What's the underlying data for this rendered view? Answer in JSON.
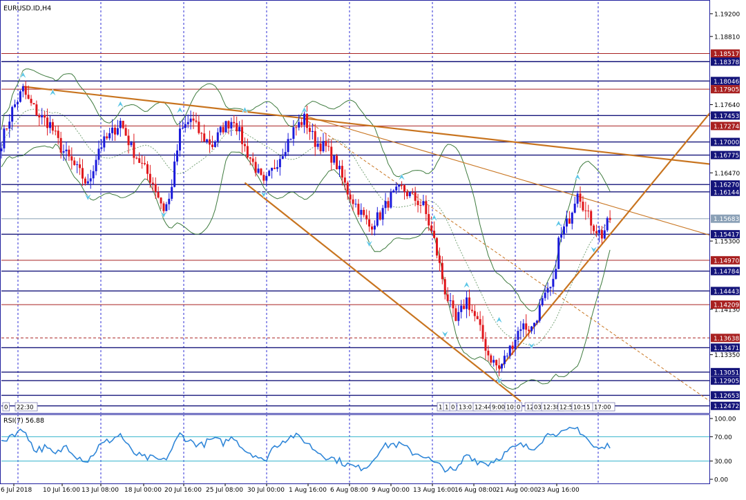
{
  "symbol_label": "EURUSD.ID,H4",
  "rsi_label": "RSI(7) 56.88",
  "colors": {
    "border": "#1e1e9e",
    "grid": "#2b2bd6",
    "bull": "#1a1adb",
    "bear": "#e0161b",
    "bollinger": "#3d7a3d",
    "trend": "#c8741f",
    "fractal": "#5bc6e6",
    "level_blue": "#14147a",
    "level_red": "#a82020",
    "rsi_line": "#2f86d8",
    "rsi_level": "#33b3cc",
    "current_price": "#8aa0b6"
  },
  "icons": [
    "fractal-up-arrow-icon",
    "fractal-down-arrow-icon"
  ],
  "chart_data": [
    {
      "type": "candlestick",
      "title": "EURUSD.ID,H4",
      "x_ticks": [
        "6 Jul 2018",
        "10 Jul 16:00",
        "13 Jul 08:00",
        "18 Jul 00:00",
        "20 Jul 16:00",
        "25 Jul 08:00",
        "30 Jul 00:00",
        "1 Aug 16:00",
        "6 Aug 08:00",
        "9 Aug 00:00",
        "13 Aug 16:00",
        "16 Aug 08:00",
        "21 Aug 00:00",
        "23 Aug 16:00"
      ],
      "y_ticks": [
        "1.19200",
        "1.18810",
        "1.17640",
        "1.16470",
        "1.15300",
        "1.14130",
        "1.13350"
      ],
      "ylim": [
        1.1235,
        1.194
      ],
      "current_price": "1.15683",
      "price_levels": [
        {
          "label": "1.18517",
          "color": "red"
        },
        {
          "label": "1.18378",
          "color": "blue"
        },
        {
          "label": "1.18046",
          "color": "blue"
        },
        {
          "label": "1.17905",
          "color": "red"
        },
        {
          "label": "1.17453",
          "color": "blue"
        },
        {
          "label": "1.17274",
          "color": "red"
        },
        {
          "label": "1.17000",
          "color": "blue"
        },
        {
          "label": "1.16775",
          "color": "blue"
        },
        {
          "label": "1.16270",
          "color": "blue"
        },
        {
          "label": "1.16144",
          "color": "blue"
        },
        {
          "label": "1.15417",
          "color": "blue"
        },
        {
          "label": "1.14970",
          "color": "red"
        },
        {
          "label": "1.14784",
          "color": "blue"
        },
        {
          "label": "1.14443",
          "color": "blue"
        },
        {
          "label": "1.14209",
          "color": "red"
        },
        {
          "label": "1.13638",
          "color": "red",
          "dashed": true
        },
        {
          "label": "1.13471",
          "color": "blue"
        },
        {
          "label": "1.13051",
          "color": "blue"
        },
        {
          "label": "1.12905",
          "color": "blue"
        },
        {
          "label": "1.12653",
          "color": "blue"
        },
        {
          "label": "1.12472",
          "color": "blue"
        }
      ],
      "close_path": [
        [
          0,
          1.17
        ],
        [
          4,
          1.1755
        ],
        [
          8,
          1.179
        ],
        [
          10,
          1.177
        ],
        [
          14,
          1.1745
        ],
        [
          18,
          1.173
        ],
        [
          22,
          1.169
        ],
        [
          26,
          1.1665
        ],
        [
          30,
          1.164
        ],
        [
          32,
          1.1625
        ],
        [
          36,
          1.169
        ],
        [
          40,
          1.171
        ],
        [
          44,
          1.1735
        ],
        [
          48,
          1.169
        ],
        [
          52,
          1.166
        ],
        [
          56,
          1.163
        ],
        [
          60,
          1.1585
        ],
        [
          62,
          1.16
        ],
        [
          66,
          1.1715
        ],
        [
          70,
          1.174
        ],
        [
          74,
          1.171
        ],
        [
          78,
          1.1695
        ],
        [
          82,
          1.1725
        ],
        [
          86,
          1.174
        ],
        [
          90,
          1.169
        ],
        [
          94,
          1.1655
        ],
        [
          97,
          1.1625
        ],
        [
          100,
          1.165
        ],
        [
          104,
          1.1685
        ],
        [
          108,
          1.172
        ],
        [
          112,
          1.174
        ],
        [
          116,
          1.17
        ],
        [
          120,
          1.169
        ],
        [
          124,
          1.166
        ],
        [
          128,
          1.1615
        ],
        [
          132,
          1.1585
        ],
        [
          136,
          1.1555
        ],
        [
          140,
          1.1575
        ],
        [
          144,
          1.1605
        ],
        [
          148,
          1.162
        ],
        [
          152,
          1.1605
        ],
        [
          156,
          1.159
        ],
        [
          160,
          1.153
        ],
        [
          164,
          1.1445
        ],
        [
          168,
          1.139
        ],
        [
          172,
          1.143
        ],
        [
          176,
          1.139
        ],
        [
          180,
          1.1335
        ],
        [
          184,
          1.131
        ],
        [
          188,
          1.1345
        ],
        [
          192,
          1.1385
        ],
        [
          196,
          1.138
        ],
        [
          200,
          1.1425
        ],
        [
          204,
          1.1455
        ],
        [
          206,
          1.153
        ],
        [
          210,
          1.157
        ],
        [
          213,
          1.162
        ],
        [
          216,
          1.158
        ],
        [
          219,
          1.1555
        ],
        [
          222,
          1.154
        ],
        [
          225,
          1.1568
        ]
      ],
      "fractals_up": [
        [
          8,
          1.1805
        ],
        [
          19,
          1.1775
        ],
        [
          44,
          1.1755
        ],
        [
          66,
          1.1745
        ],
        [
          90,
          1.1745
        ],
        [
          112,
          1.1745
        ],
        [
          148,
          1.163
        ],
        [
          160,
          1.156
        ],
        [
          172,
          1.1445
        ],
        [
          184,
          1.1385
        ],
        [
          206,
          1.155
        ],
        [
          213,
          1.163
        ]
      ],
      "fractals_down": [
        [
          32,
          1.1615
        ],
        [
          60,
          1.1585
        ],
        [
          97,
          1.162
        ],
        [
          136,
          1.1535
        ],
        [
          164,
          1.138
        ],
        [
          184,
          1.13
        ],
        [
          196,
          1.136
        ],
        [
          219,
          1.1525
        ]
      ],
      "trendlines": [
        {
          "from": [
            8,
            1.1795
          ],
          "to": [
            262,
            1.1662
          ],
          "style": "solid"
        },
        {
          "from": [
            112,
            1.1745
          ],
          "to": [
            262,
            1.154
          ],
          "style": "thin"
        },
        {
          "from": [
            90,
            1.163
          ],
          "to": [
            192,
            1.1255
          ],
          "style": "solid"
        },
        {
          "from": [
            184,
            1.131
          ],
          "to": [
            262,
            1.175
          ],
          "style": "solid"
        },
        {
          "from": [
            112,
            1.174
          ],
          "to": [
            262,
            1.1255
          ],
          "style": "dashed"
        }
      ],
      "sub_window_labels": [
        "0",
        "22:30",
        "1",
        "1",
        "0",
        "13:0",
        "12:44",
        "9:00",
        "10:",
        "0",
        "12",
        "03",
        "12:38",
        "12:5",
        "10:15",
        "17:00"
      ]
    },
    {
      "type": "line",
      "title": "RSI(7) 56.88",
      "y_ticks": [
        "100.00",
        "70.00",
        "30.00",
        "0.00"
      ],
      "ylim": [
        0,
        100
      ],
      "levels": [
        70,
        30
      ],
      "last_value": 56.88,
      "series": [
        {
          "name": "RSI(7)",
          "values": [
            [
              0,
              58
            ],
            [
              3,
              72
            ],
            [
              6,
              78
            ],
            [
              9,
              80
            ],
            [
              12,
              48
            ],
            [
              16,
              52
            ],
            [
              20,
              40
            ],
            [
              24,
              56
            ],
            [
              28,
              38
            ],
            [
              32,
              30
            ],
            [
              36,
              54
            ],
            [
              40,
              64
            ],
            [
              44,
              74
            ],
            [
              48,
              46
            ],
            [
              52,
              36
            ],
            [
              56,
              34
            ],
            [
              60,
              30
            ],
            [
              62,
              42
            ],
            [
              66,
              74
            ],
            [
              70,
              62
            ],
            [
              74,
              56
            ],
            [
              78,
              66
            ],
            [
              82,
              60
            ],
            [
              86,
              70
            ],
            [
              90,
              48
            ],
            [
              94,
              40
            ],
            [
              97,
              28
            ],
            [
              100,
              50
            ],
            [
              104,
              64
            ],
            [
              108,
              72
            ],
            [
              112,
              64
            ],
            [
              116,
              48
            ],
            [
              120,
              38
            ],
            [
              124,
              32
            ],
            [
              128,
              24
            ],
            [
              132,
              18
            ],
            [
              136,
              24
            ],
            [
              140,
              50
            ],
            [
              144,
              58
            ],
            [
              148,
              56
            ],
            [
              152,
              44
            ],
            [
              156,
              40
            ],
            [
              160,
              26
            ],
            [
              164,
              18
            ],
            [
              168,
              12
            ],
            [
              172,
              42
            ],
            [
              176,
              30
            ],
            [
              180,
              26
            ],
            [
              184,
              36
            ],
            [
              188,
              48
            ],
            [
              192,
              56
            ],
            [
              196,
              50
            ],
            [
              200,
              66
            ],
            [
              204,
              80
            ],
            [
              206,
              72
            ],
            [
              210,
              80
            ],
            [
              213,
              84
            ],
            [
              216,
              70
            ],
            [
              219,
              52
            ],
            [
              222,
              50
            ],
            [
              225,
              57
            ]
          ]
        }
      ]
    }
  ]
}
